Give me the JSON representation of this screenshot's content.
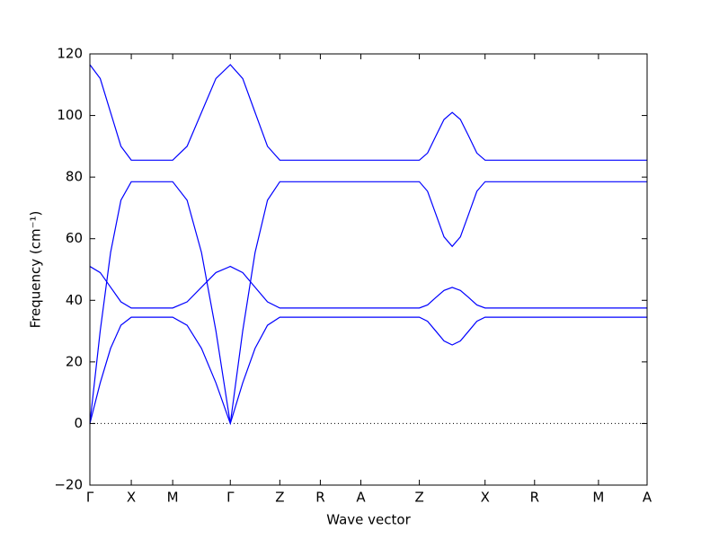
{
  "chart_data": {
    "type": "line",
    "xlabel": "Wave vector",
    "ylabel": "Frequency (cm⁻¹)",
    "xlim": [
      0,
      6.19
    ],
    "ylim": [
      -20,
      120
    ],
    "xticks": [
      {
        "value": 0,
        "label": "Γ"
      },
      {
        "value": 0.46,
        "label": "X"
      },
      {
        "value": 0.92,
        "label": "M"
      },
      {
        "value": 1.56,
        "label": "Γ"
      },
      {
        "value": 2.11,
        "label": "Z"
      },
      {
        "value": 2.56,
        "label": "R"
      },
      {
        "value": 3.01,
        "label": "A"
      },
      {
        "value": 3.66,
        "label": "Z"
      },
      {
        "value": 4.39,
        "label": "X"
      },
      {
        "value": 4.94,
        "label": "R"
      },
      {
        "value": 5.65,
        "label": "M"
      },
      {
        "value": 6.19,
        "label": "A"
      }
    ],
    "yticks": [
      {
        "value": -20,
        "label": "−20"
      },
      0,
      20,
      40,
      60,
      80,
      100,
      120
    ],
    "reference_line": 0,
    "x": [
      0,
      0.115,
      0.23,
      0.345,
      0.46,
      0.92,
      1.08,
      1.24,
      1.4,
      1.56,
      1.698,
      1.835,
      1.973,
      2.11,
      2.56,
      3.01,
      3.66,
      3.751,
      3.843,
      3.934,
      4.025,
      4.116,
      4.208,
      4.299,
      4.39,
      4.94,
      5.65,
      6.19
    ],
    "series": [
      {
        "color": "#0000ff",
        "values": [
          0,
          13.2,
          24.4,
          31.9,
          34.5,
          34.5,
          31.9,
          24.4,
          13.2,
          0,
          13.2,
          24.4,
          31.9,
          34.5,
          34.5,
          34.5,
          34.5,
          33.2,
          30.0,
          26.8,
          25.5,
          26.8,
          30.0,
          33.2,
          34.5,
          34.5,
          34.5,
          34.5
        ]
      },
      {
        "color": "#0000ff",
        "values": [
          51,
          49.0,
          44.25,
          39.5,
          37.5,
          37.5,
          39.5,
          44.25,
          49.0,
          51,
          49.0,
          44.25,
          39.5,
          37.5,
          37.5,
          37.5,
          37.5,
          38.5,
          40.9,
          43.2,
          44.2,
          43.2,
          40.9,
          38.5,
          37.5,
          37.5,
          37.5,
          37.5
        ]
      },
      {
        "color": "#0000ff",
        "values": [
          0,
          30.1,
          55.5,
          72.5,
          78.5,
          78.5,
          72.5,
          55.5,
          30.1,
          0,
          30.1,
          55.5,
          72.5,
          78.5,
          78.5,
          78.5,
          78.5,
          75.4,
          68.0,
          60.6,
          57.5,
          60.6,
          68.0,
          75.4,
          78.5,
          78.5,
          78.5,
          78.5
        ]
      },
      {
        "color": "#0000ff",
        "values": [
          116.5,
          112.0,
          101.0,
          90.0,
          85.5,
          85.5,
          90.0,
          101.0,
          112.0,
          116.5,
          112.0,
          101.0,
          90.0,
          85.5,
          85.5,
          85.5,
          85.5,
          87.8,
          93.3,
          98.7,
          101,
          98.7,
          93.3,
          87.8,
          85.5,
          85.5,
          85.5,
          85.5
        ]
      }
    ]
  }
}
